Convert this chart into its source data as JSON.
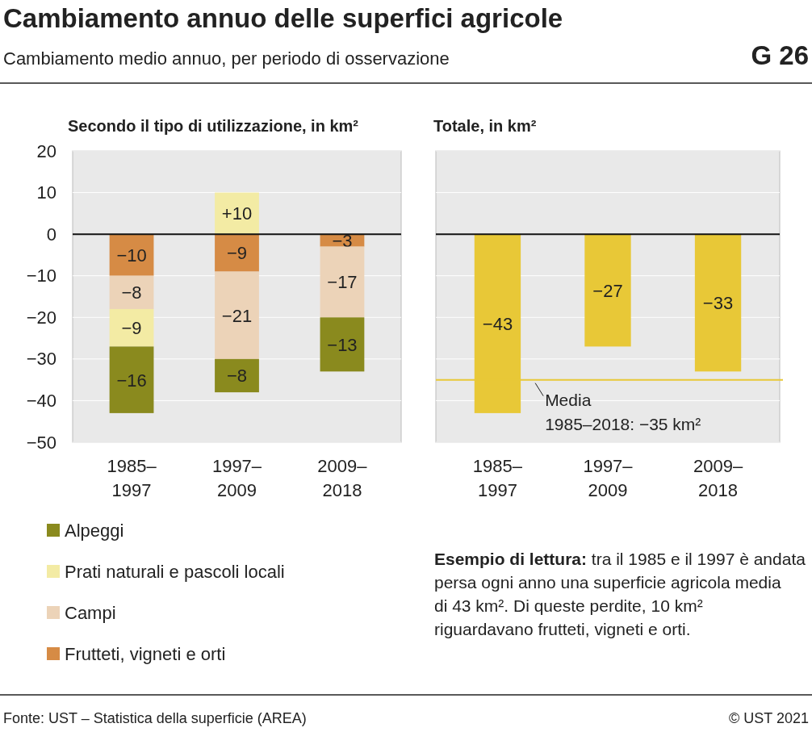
{
  "chart_data": [
    {
      "type": "bar",
      "title": "Cambiamento annuo delle superfici agricole",
      "subtitle": "Cambiamento medio annuo, per periodo di osservazione",
      "annotations": [
        "G 26",
        "Secondo il tipo di utilizzazione, in km²",
        "Fonte: UST – Statistica della superficie (AREA)",
        "© UST 2021"
      ],
      "categories": [
        "1985–1997",
        "1997–2009",
        "2009–2018"
      ],
      "stacked": true,
      "series": [
        {
          "name": "Frutteti, vigneti e orti",
          "color": "#d68b45",
          "values": [
            -10,
            -9,
            -3
          ],
          "value_labels": [
            "−10",
            "−9",
            "−3"
          ]
        },
        {
          "name": "Campi",
          "color": "#ecd3b8",
          "values": [
            -8,
            -21,
            -17
          ],
          "value_labels": [
            "−8",
            "−21",
            "−17"
          ]
        },
        {
          "name": "Prati naturali e pascoli locali",
          "color": "#f3eba4",
          "values": [
            -9,
            10,
            null
          ],
          "value_labels": [
            "−9",
            "+10",
            null
          ]
        },
        {
          "name": "Alpeggi",
          "color": "#8a8a1e",
          "values": [
            -16,
            -8,
            -13
          ],
          "value_labels": [
            "−16",
            "−8",
            "−13"
          ]
        }
      ],
      "ylim": [
        -50,
        20
      ],
      "yticks": [
        20,
        10,
        0,
        {
          "value": -10,
          "label": "−10"
        },
        {
          "value": -20,
          "label": "−20"
        },
        {
          "value": -30,
          "label": "−30"
        },
        {
          "value": -40,
          "label": "−40"
        },
        {
          "value": -50,
          "label": "−50"
        }
      ],
      "grid": "y",
      "legend": "bottom"
    },
    {
      "type": "bar",
      "title": "Totale, in km²",
      "annotations": [
        "Esempio di lettura: tra il 1985 e il 1997 è andata persa ogni anno una superficie agricola media di 43 km². Di queste perdite, 10 km² riguardavano frutteti, vigneti e orti."
      ],
      "categories": [
        "1985–1997",
        "1997–2009",
        "2009–2018"
      ],
      "series": [
        {
          "color": "#e8c837",
          "values": [
            -43,
            -27,
            -33
          ],
          "value_labels": [
            "−43",
            "−27",
            "−33"
          ]
        }
      ],
      "ylim": [
        -50,
        20
      ],
      "yticks": [
        20,
        10,
        0,
        -10,
        -20,
        -30,
        -40,
        -50
      ],
      "grid": "y",
      "tick_labels": "x",
      "ref_lines": [
        {
          "axis": "y",
          "value": -35,
          "label": "Media\n1985–2018: −35 km²",
          "color": "#e8c837"
        }
      ]
    }
  ]
}
